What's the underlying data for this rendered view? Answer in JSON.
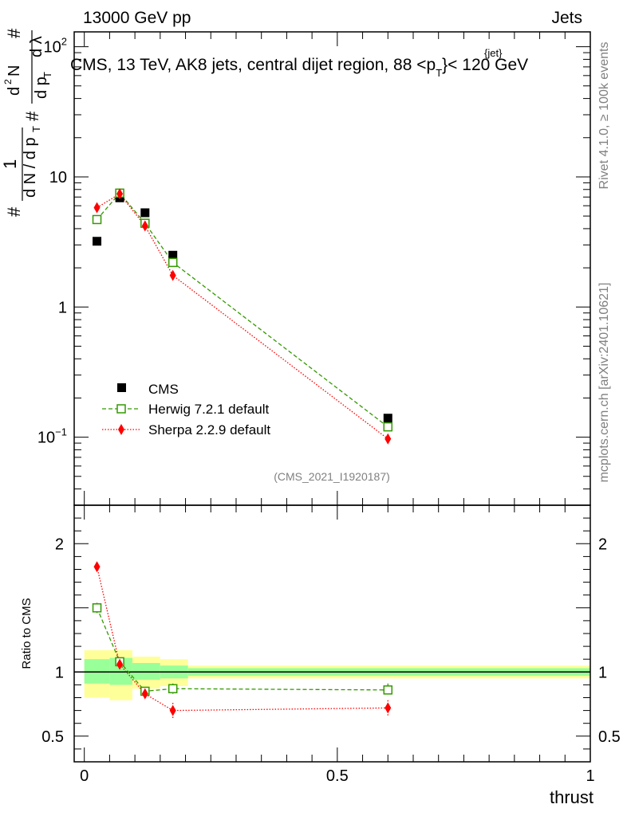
{
  "header": {
    "energy_label": "13000 GeV pp",
    "category_label": "Jets"
  },
  "side_labels": {
    "rivet": "Rivet 4.1.0, ≥ 100k events",
    "mcplots": "mcplots.cern.ch [arXiv:2401.10621]"
  },
  "chart_data": [
    {
      "type": "scatter",
      "title": "CMS, 13 TeV, AK8 jets, central dijet region, 88 <p",
      "title_sup": "{jet}",
      "title_sub": "T",
      "title_tail": "}< 120 GeV",
      "analysis_id": "(CMS_2021_I1920187)",
      "ylabel": "1/dN/dpT dN²/dpT dλ",
      "ylabel_parts": {
        "p1": "#",
        "p2": "1",
        "p3": "d N / d p",
        "p4": "T",
        "p5": "#",
        "p6": "d p",
        "p7": "T",
        "p8": "d",
        "p9": "2",
        "p10": "N",
        "p11": "d λ",
        "p12": "#"
      },
      "yscale": "log",
      "ylim": [
        0.03,
        130
      ],
      "xlim": [
        -0.02,
        1.0
      ],
      "y_ticks": [
        {
          "value": 0.1,
          "base": "10",
          "exp": "−1"
        },
        {
          "value": 1,
          "base": "1",
          "exp": ""
        },
        {
          "value": 10,
          "base": "10",
          "exp": ""
        },
        {
          "value": 100,
          "base": "10",
          "exp": "2"
        }
      ],
      "legend_position": "lower-left",
      "series": [
        {
          "name": "CMS",
          "marker": "square-filled",
          "color": "#000000",
          "line": "none",
          "x": [
            0.025,
            0.07,
            0.12,
            0.175,
            0.6
          ],
          "y": [
            3.2,
            6.9,
            5.3,
            2.5,
            0.14
          ]
        },
        {
          "name": "Herwig 7.2.1 default",
          "marker": "square-open",
          "color": "#339900",
          "line": "dashed",
          "x": [
            0.025,
            0.07,
            0.12,
            0.175,
            0.6
          ],
          "y": [
            4.7,
            7.5,
            4.4,
            2.2,
            0.12
          ]
        },
        {
          "name": "Sherpa 2.2.9 default",
          "marker": "diamond-filled",
          "color": "#ff0000",
          "line": "dotted",
          "x": [
            0.025,
            0.07,
            0.12,
            0.175,
            0.6
          ],
          "y": [
            5.8,
            7.4,
            4.2,
            1.75,
            0.097
          ]
        }
      ]
    },
    {
      "type": "scatter",
      "title": "",
      "xlabel": "thrust",
      "ylabel": "Ratio to CMS",
      "ylim": [
        0.3,
        2.3
      ],
      "xlim": [
        -0.02,
        1.0
      ],
      "x_ticks": [
        {
          "value": 0,
          "label": "0"
        },
        {
          "value": 0.5,
          "label": "0.5"
        },
        {
          "value": 1,
          "label": "1"
        }
      ],
      "y_ticks": [
        {
          "value": 0.5,
          "label": "0.5"
        },
        {
          "value": 1,
          "label": "1"
        },
        {
          "value": 2,
          "label": "2"
        }
      ],
      "bands": [
        {
          "x0": 0.0,
          "x1": 0.05,
          "green": [
            0.91,
            1.1
          ],
          "yellow": [
            0.8,
            1.17
          ]
        },
        {
          "x0": 0.05,
          "x1": 0.095,
          "green": [
            0.9,
            1.11
          ],
          "yellow": [
            0.78,
            1.17
          ]
        },
        {
          "x0": 0.095,
          "x1": 0.15,
          "green": [
            0.94,
            1.07
          ],
          "yellow": [
            0.87,
            1.12
          ]
        },
        {
          "x0": 0.15,
          "x1": 0.205,
          "green": [
            0.95,
            1.05
          ],
          "yellow": [
            0.89,
            1.1
          ]
        },
        {
          "x0": 0.205,
          "x1": 1.0,
          "green": [
            0.97,
            1.03
          ],
          "yellow": [
            0.95,
            1.05
          ]
        }
      ],
      "series": [
        {
          "name": "Herwig 7.2.1 default",
          "color": "#339900",
          "line": "dashed",
          "marker": "square-open",
          "x": [
            0.025,
            0.07,
            0.12,
            0.175,
            0.6
          ],
          "y": [
            1.5,
            1.08,
            0.85,
            0.87,
            0.86
          ],
          "err": [
            0.04,
            0.03,
            0.02,
            0.04,
            0.05
          ]
        },
        {
          "name": "Sherpa 2.2.9 default",
          "color": "#ff0000",
          "line": "dotted",
          "marker": "diamond-filled",
          "x": [
            0.025,
            0.07,
            0.12,
            0.175,
            0.6
          ],
          "y": [
            1.82,
            1.06,
            0.83,
            0.7,
            0.72
          ],
          "err": [
            0.03,
            0.03,
            0.03,
            0.06,
            0.06
          ]
        }
      ]
    }
  ]
}
